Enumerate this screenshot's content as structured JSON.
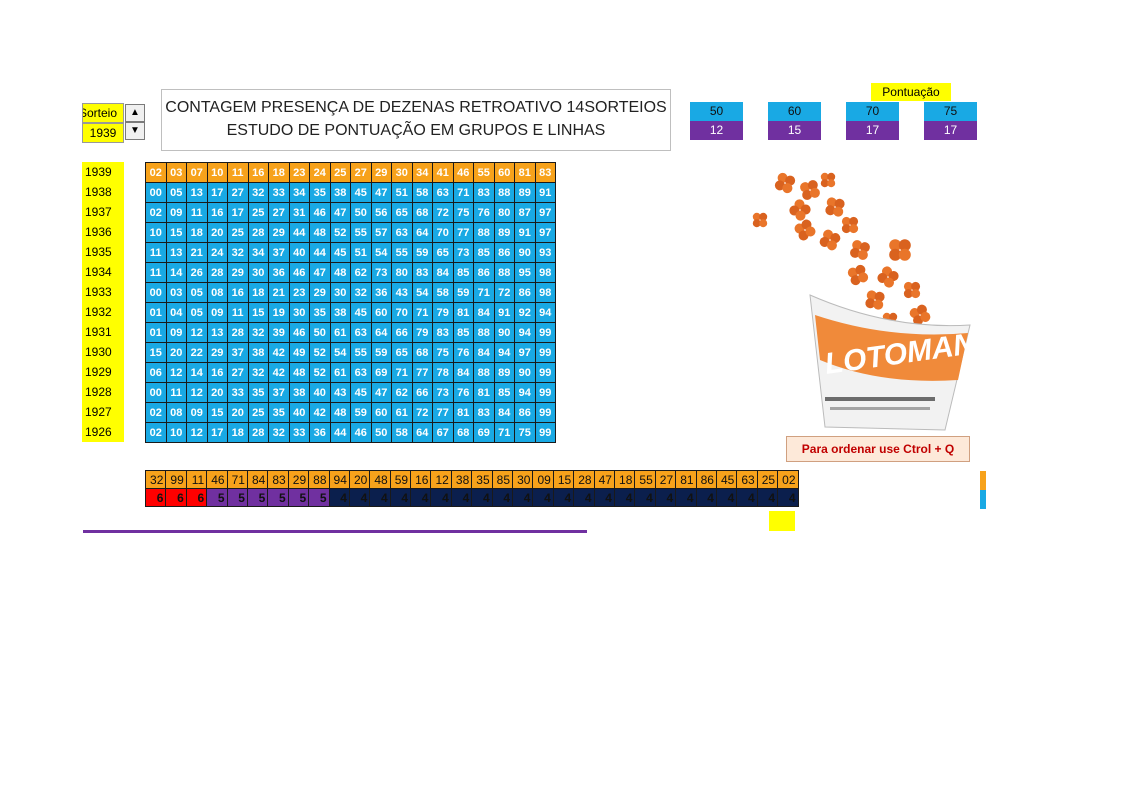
{
  "sorteio": {
    "label": "Sorteio",
    "value": "1939",
    "up_icon": "▲",
    "down_icon": "▼"
  },
  "title": {
    "line1": "CONTAGEM PRESENÇA DE  DEZENAS RETROATIVO 14SORTEIOS",
    "line2": "ESTUDO DE PONTUAÇÃO EM GRUPOS E LINHAS"
  },
  "pontuacao": {
    "label": "Pontuação",
    "boxes": [
      {
        "key": "50",
        "count": "12"
      },
      {
        "key": "60",
        "count": "15"
      },
      {
        "key": "70",
        "count": "17"
      },
      {
        "key": "75",
        "count": "17"
      }
    ]
  },
  "years": [
    "1939",
    "1938",
    "1937",
    "1936",
    "1935",
    "1934",
    "1933",
    "1932",
    "1931",
    "1930",
    "1929",
    "1928",
    "1927",
    "1926"
  ],
  "rows": [
    [
      "02",
      "03",
      "07",
      "10",
      "11",
      "16",
      "18",
      "23",
      "24",
      "25",
      "27",
      "29",
      "30",
      "34",
      "41",
      "46",
      "55",
      "60",
      "81",
      "83"
    ],
    [
      "00",
      "05",
      "13",
      "17",
      "27",
      "32",
      "33",
      "34",
      "35",
      "38",
      "45",
      "47",
      "51",
      "58",
      "63",
      "71",
      "83",
      "88",
      "89",
      "91"
    ],
    [
      "02",
      "09",
      "11",
      "16",
      "17",
      "25",
      "27",
      "31",
      "46",
      "47",
      "50",
      "56",
      "65",
      "68",
      "72",
      "75",
      "76",
      "80",
      "87",
      "97"
    ],
    [
      "10",
      "15",
      "18",
      "20",
      "25",
      "28",
      "29",
      "44",
      "48",
      "52",
      "55",
      "57",
      "63",
      "64",
      "70",
      "77",
      "88",
      "89",
      "91",
      "97"
    ],
    [
      "11",
      "13",
      "21",
      "24",
      "32",
      "34",
      "37",
      "40",
      "44",
      "45",
      "51",
      "54",
      "55",
      "59",
      "65",
      "73",
      "85",
      "86",
      "90",
      "93"
    ],
    [
      "11",
      "14",
      "26",
      "28",
      "29",
      "30",
      "36",
      "46",
      "47",
      "48",
      "62",
      "73",
      "80",
      "83",
      "84",
      "85",
      "86",
      "88",
      "95",
      "98"
    ],
    [
      "00",
      "03",
      "05",
      "08",
      "16",
      "18",
      "21",
      "23",
      "29",
      "30",
      "32",
      "36",
      "43",
      "54",
      "58",
      "59",
      "71",
      "72",
      "86",
      "98"
    ],
    [
      "01",
      "04",
      "05",
      "09",
      "11",
      "15",
      "19",
      "30",
      "35",
      "38",
      "45",
      "60",
      "70",
      "71",
      "79",
      "81",
      "84",
      "91",
      "92",
      "94"
    ],
    [
      "01",
      "09",
      "12",
      "13",
      "28",
      "32",
      "39",
      "46",
      "50",
      "61",
      "63",
      "64",
      "66",
      "79",
      "83",
      "85",
      "88",
      "90",
      "94",
      "99"
    ],
    [
      "15",
      "20",
      "22",
      "29",
      "37",
      "38",
      "42",
      "49",
      "52",
      "54",
      "55",
      "59",
      "65",
      "68",
      "75",
      "76",
      "84",
      "94",
      "97",
      "99"
    ],
    [
      "06",
      "12",
      "14",
      "16",
      "27",
      "32",
      "42",
      "48",
      "52",
      "61",
      "63",
      "69",
      "71",
      "77",
      "78",
      "84",
      "88",
      "89",
      "90",
      "99"
    ],
    [
      "00",
      "11",
      "12",
      "20",
      "33",
      "35",
      "37",
      "38",
      "40",
      "43",
      "45",
      "47",
      "62",
      "66",
      "73",
      "76",
      "81",
      "85",
      "94",
      "99"
    ],
    [
      "02",
      "08",
      "09",
      "15",
      "20",
      "25",
      "35",
      "40",
      "42",
      "48",
      "59",
      "60",
      "61",
      "72",
      "77",
      "81",
      "83",
      "84",
      "86",
      "99"
    ],
    [
      "02",
      "10",
      "12",
      "17",
      "18",
      "28",
      "32",
      "33",
      "36",
      "44",
      "46",
      "50",
      "58",
      "64",
      "67",
      "68",
      "69",
      "71",
      "75",
      "99"
    ]
  ],
  "strip": {
    "numbers": [
      "32",
      "99",
      "11",
      "46",
      "71",
      "84",
      "83",
      "29",
      "88",
      "94",
      "20",
      "48",
      "59",
      "16",
      "12",
      "38",
      "35",
      "85",
      "30",
      "09",
      "15",
      "28",
      "47",
      "18",
      "55",
      "27",
      "81",
      "86",
      "45",
      "63",
      "25",
      "02"
    ],
    "counts": [
      "6",
      "6",
      "6",
      "5",
      "5",
      "5",
      "5",
      "5",
      "5",
      "4",
      "4",
      "4",
      "4",
      "4",
      "4",
      "4",
      "4",
      "4",
      "4",
      "4",
      "4",
      "4",
      "4",
      "4",
      "4",
      "4",
      "4",
      "4",
      "4",
      "4",
      "4",
      "4"
    ]
  },
  "colors": {
    "red": "#ff0000",
    "purple": "#7030a0",
    "navy": "#0b1f4d",
    "orange": "#f7a21b",
    "blue": "#19a9e4",
    "yellow": "#ffff00"
  },
  "order_hint": "Para ordenar use Ctrol + Q",
  "logo": {
    "text": "LOTOMANIA",
    "icon": "clover-icon"
  }
}
